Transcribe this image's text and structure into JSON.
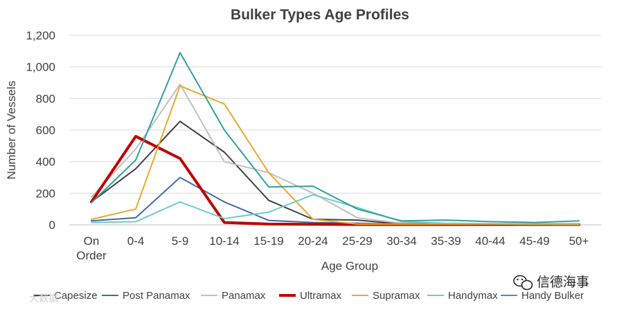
{
  "chart_data": {
    "type": "line",
    "title": "Bulker Types Age Profiles",
    "xlabel": "Age Group",
    "ylabel": "Number of Vessels",
    "categories": [
      "On Order",
      "0-4",
      "5-9",
      "10-14",
      "15-19",
      "20-24",
      "25-29",
      "30-34",
      "35-39",
      "40-44",
      "45-49",
      "50+"
    ],
    "category_lines": [
      [
        "On",
        "Order"
      ],
      [
        "0-4"
      ],
      [
        "5-9"
      ],
      [
        "10-14"
      ],
      [
        "15-19"
      ],
      [
        "20-24"
      ],
      [
        "25-29"
      ],
      [
        "30-34"
      ],
      [
        "35-39"
      ],
      [
        "40-44"
      ],
      [
        "45-49"
      ],
      [
        "50+"
      ]
    ],
    "ylim": [
      0,
      1200
    ],
    "yticks": [
      0,
      200,
      400,
      600,
      800,
      1000,
      1200
    ],
    "ytick_labels": [
      "0",
      "200",
      "400",
      "600",
      "800",
      "1,000",
      "1,200"
    ],
    "grid": true,
    "legend_position": "bottom",
    "series": [
      {
        "name": "Capesize",
        "color": "#404040",
        "bold": false,
        "values": [
          145,
          355,
          655,
          460,
          155,
          35,
          30,
          5,
          5,
          2,
          2,
          2
        ]
      },
      {
        "name": "Post Panamax",
        "color": "#4169aa",
        "bold": false,
        "values": [
          25,
          45,
          300,
          145,
          28,
          15,
          10,
          5,
          3,
          2,
          2,
          2
        ]
      },
      {
        "name": "Panamax",
        "color": "#c0c0c0",
        "bold": false,
        "values": [
          175,
          480,
          890,
          400,
          330,
          200,
          45,
          10,
          8,
          5,
          3,
          3
        ]
      },
      {
        "name": "Ultramax",
        "color": "#c00000",
        "bold": true,
        "values": [
          145,
          560,
          420,
          15,
          5,
          3,
          2,
          2,
          2,
          2,
          2,
          2
        ]
      },
      {
        "name": "Supramax",
        "color": "#e8a92e",
        "bold": false,
        "values": [
          35,
          100,
          880,
          765,
          330,
          35,
          5,
          5,
          5,
          5,
          3,
          2
        ]
      },
      {
        "name": "Handymax",
        "color": "#6ccdc8",
        "bold": false,
        "values": [
          15,
          20,
          145,
          40,
          80,
          190,
          110,
          20,
          10,
          8,
          8,
          8
        ]
      },
      {
        "name": "Handy Bulker",
        "color": "#31a09b",
        "bold": false,
        "values": [
          140,
          410,
          1090,
          600,
          240,
          245,
          100,
          25,
          30,
          20,
          15,
          25
        ]
      }
    ]
  },
  "watermark": {
    "brand": "信德海事",
    "faint": "大数据"
  }
}
